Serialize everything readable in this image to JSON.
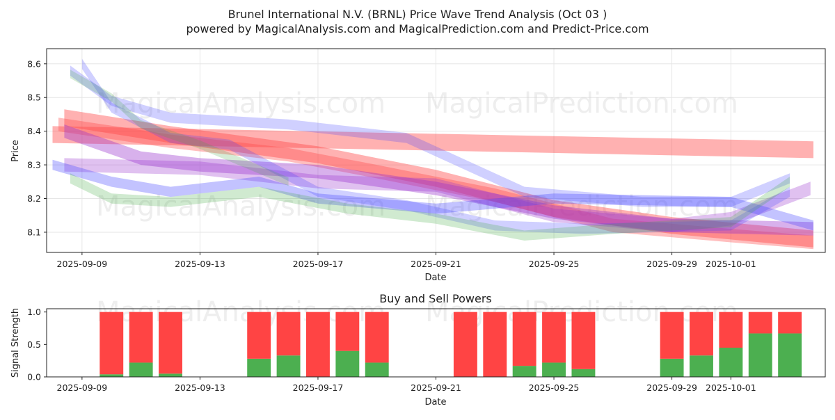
{
  "chart_data": [
    {
      "type": "area",
      "title_line1": "Brunel International N.V. (BRNL) Price Wave Trend Analysis (Oct 03 )",
      "title_line2": "powered by MagicalAnalysis.com and MagicalPrediction.com and Predict-Price.com",
      "xlabel": "Date",
      "ylabel": "Price",
      "ylim": [
        8.04,
        8.645
      ],
      "xlim": [
        -1.2,
        25.2
      ],
      "yticks": [
        8.1,
        8.2,
        8.3,
        8.4,
        8.5,
        8.6
      ],
      "xticks": [
        {
          "day": 0,
          "label": "2025-09-09"
        },
        {
          "day": 4,
          "label": "2025-09-13"
        },
        {
          "day": 8,
          "label": "2025-09-17"
        },
        {
          "day": 12,
          "label": "2025-09-21"
        },
        {
          "day": 16,
          "label": "2025-09-25"
        },
        {
          "day": 20,
          "label": "2025-09-29"
        },
        {
          "day": 22,
          "label": "2025-10-01"
        }
      ],
      "grid": true,
      "watermarks": [
        "MagicalAnalysis.com",
        "MagicalPrediction.com"
      ],
      "series": [
        {
          "name": "red wave 1",
          "color": "#ff4444",
          "opacity": 0.42,
          "band": 0.05,
          "x": [
            -1,
            24.8
          ],
          "y": [
            8.39,
            8.345
          ]
        },
        {
          "name": "red wave 2",
          "color": "#ff4444",
          "opacity": 0.42,
          "band": 0.05,
          "x": [
            -0.6,
            3,
            8,
            12,
            16,
            20,
            24.8
          ],
          "y": [
            8.44,
            8.39,
            8.33,
            8.26,
            8.17,
            8.12,
            8.08
          ]
        },
        {
          "name": "red wave 3",
          "color": "#ff4444",
          "opacity": 0.35,
          "band": 0.04,
          "x": [
            -0.8,
            3,
            7,
            10,
            14,
            18,
            22,
            24.8
          ],
          "y": [
            8.42,
            8.37,
            8.33,
            8.28,
            8.21,
            8.12,
            8.09,
            8.07
          ]
        },
        {
          "name": "purple wave 1",
          "color": "#9933cc",
          "opacity": 0.38,
          "band": 0.04,
          "x": [
            -0.6,
            2,
            4,
            8,
            12,
            16,
            20,
            24.8
          ],
          "y": [
            8.4,
            8.32,
            8.3,
            8.28,
            8.23,
            8.16,
            8.12,
            8.11
          ]
        },
        {
          "name": "purple wave 2",
          "color": "#9933cc",
          "opacity": 0.3,
          "band": 0.04,
          "x": [
            -0.6,
            4,
            8,
            12,
            16,
            20,
            22,
            24.7
          ],
          "y": [
            8.3,
            8.29,
            8.25,
            8.24,
            8.15,
            8.12,
            8.14,
            8.23
          ]
        },
        {
          "name": "blue wave 1",
          "color": "#4444ff",
          "opacity": 0.32,
          "band": 0.03,
          "x": [
            -1,
            1,
            3,
            6,
            8,
            12,
            16,
            22,
            24.8
          ],
          "y": [
            8.3,
            8.25,
            8.22,
            8.25,
            8.2,
            8.17,
            8.2,
            8.19,
            8.12
          ]
        },
        {
          "name": "blue wave 2",
          "color": "#4444ff",
          "opacity": 0.25,
          "band": 0.03,
          "x": [
            -0.4,
            1,
            3,
            7,
            11,
            15,
            19,
            22,
            24
          ],
          "y": [
            8.58,
            8.49,
            8.44,
            8.42,
            8.38,
            8.22,
            8.19,
            8.19,
            8.26
          ]
        },
        {
          "name": "blue wave 3",
          "color": "#4444ff",
          "opacity": 0.25,
          "band": 0.03,
          "x": [
            0,
            1,
            3,
            5,
            8,
            11,
            14,
            17,
            22,
            24
          ],
          "y": [
            8.6,
            8.47,
            8.38,
            8.36,
            8.22,
            8.18,
            8.12,
            8.11,
            8.12,
            8.22
          ]
        },
        {
          "name": "green wave 1",
          "color": "#44aa44",
          "opacity": 0.25,
          "band": 0.03,
          "x": [
            -0.4,
            1,
            3,
            6,
            9,
            12,
            15,
            18,
            22,
            24
          ],
          "y": [
            8.26,
            8.2,
            8.19,
            8.22,
            8.17,
            8.14,
            8.09,
            8.11,
            8.13,
            8.25
          ]
        },
        {
          "name": "green wave 2",
          "color": "#44aa44",
          "opacity": 0.22,
          "band": 0.025,
          "x": [
            -0.4,
            1,
            2,
            4,
            7
          ],
          "y": [
            8.57,
            8.5,
            8.42,
            8.36,
            8.25
          ]
        }
      ]
    },
    {
      "type": "bar",
      "title": "Buy and Sell Powers",
      "xlabel": "Date",
      "ylabel": "Signal Strength",
      "ylim": [
        0,
        1.05
      ],
      "xlim": [
        -1.2,
        25.2
      ],
      "yticks": [
        0.0,
        0.5,
        1.0
      ],
      "xticks": [
        {
          "day": 0,
          "label": "2025-09-09"
        },
        {
          "day": 4,
          "label": "2025-09-13"
        },
        {
          "day": 8,
          "label": "2025-09-17"
        },
        {
          "day": 12,
          "label": "2025-09-21"
        },
        {
          "day": 16,
          "label": "2025-09-25"
        },
        {
          "day": 20,
          "label": "2025-09-29"
        },
        {
          "day": 22,
          "label": "2025-10-01"
        }
      ],
      "colors": {
        "buy": "#4caf50",
        "sell": "#ff4444"
      },
      "days": [
        1,
        2,
        3,
        6,
        7,
        8,
        9,
        10,
        13,
        14,
        15,
        16,
        17,
        20,
        21,
        22,
        23,
        24
      ],
      "buy": [
        0.04,
        0.22,
        0.05,
        0.28,
        0.33,
        0.0,
        0.4,
        0.22,
        0.0,
        0.0,
        0.17,
        0.22,
        0.12,
        0.28,
        0.33,
        0.45,
        0.67,
        0.67
      ],
      "sell": [
        0.96,
        0.78,
        0.95,
        0.72,
        0.67,
        1.0,
        0.6,
        0.78,
        1.0,
        1.0,
        0.83,
        0.78,
        0.88,
        0.72,
        0.67,
        0.55,
        0.33,
        0.33
      ],
      "watermarks": [
        "MagicalAnalysis.com",
        "MagicalPrediction.com"
      ]
    }
  ]
}
